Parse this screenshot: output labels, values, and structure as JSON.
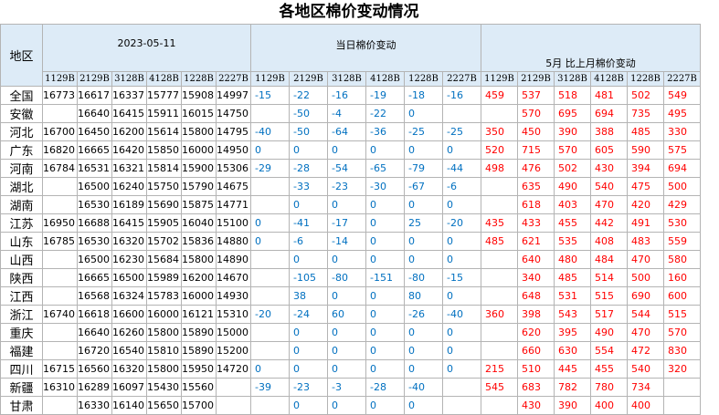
{
  "title": "各地区棉价变动情况",
  "table": {
    "header": {
      "region": "地区",
      "groups": [
        {
          "label": "2023-05-11",
          "codes": [
            "1129B",
            "2129B",
            "3128B",
            "4128B",
            "1228B",
            "2227B"
          ]
        },
        {
          "label": "当日棉价变动",
          "codes": [
            "1129B",
            "2129B",
            "3128B",
            "4128B",
            "1228B",
            "2227B"
          ]
        },
        {
          "label": "5月 比上月棉价变动",
          "codes": [
            "1129B",
            "2129B",
            "3128B",
            "4128B",
            "1228B",
            "2227B"
          ]
        }
      ]
    },
    "rows": [
      {
        "region": "全国",
        "prices": [
          16773,
          16617,
          16337,
          15777,
          15908,
          14997
        ],
        "daily": [
          -15,
          -22,
          -16,
          -19,
          -18,
          -16
        ],
        "monthly": [
          459,
          537,
          518,
          481,
          502,
          549
        ]
      },
      {
        "region": "安徽",
        "prices": [
          null,
          16640,
          16415,
          15911,
          16015,
          14750
        ],
        "daily": [
          null,
          -50,
          -4,
          -22,
          0,
          null
        ],
        "monthly": [
          null,
          570,
          695,
          694,
          735,
          495
        ]
      },
      {
        "region": "河北",
        "prices": [
          16700,
          16450,
          16200,
          15614,
          15800,
          14795
        ],
        "daily": [
          -40,
          -50,
          -64,
          -36,
          -25,
          -25
        ],
        "monthly": [
          350,
          450,
          390,
          388,
          485,
          330
        ]
      },
      {
        "region": "广东",
        "prices": [
          16820,
          16665,
          16420,
          15850,
          16000,
          14950
        ],
        "daily": [
          0,
          0,
          0,
          0,
          0,
          0
        ],
        "monthly": [
          520,
          715,
          570,
          605,
          590,
          575
        ]
      },
      {
        "region": "河南",
        "prices": [
          16784,
          16531,
          16321,
          15814,
          15900,
          15306
        ],
        "daily": [
          -29,
          -28,
          -54,
          -65,
          -79,
          -44
        ],
        "monthly": [
          498,
          476,
          502,
          430,
          394,
          694
        ]
      },
      {
        "region": "湖北",
        "prices": [
          null,
          16500,
          16240,
          15750,
          15790,
          14675
        ],
        "daily": [
          null,
          -33,
          -23,
          -30,
          -67,
          -6
        ],
        "monthly": [
          null,
          635,
          490,
          540,
          475,
          500
        ]
      },
      {
        "region": "湖南",
        "prices": [
          null,
          16530,
          16189,
          15690,
          15875,
          14771
        ],
        "daily": [
          null,
          0,
          0,
          0,
          0,
          0
        ],
        "monthly": [
          null,
          618,
          403,
          470,
          420,
          429
        ]
      },
      {
        "region": "江苏",
        "prices": [
          16950,
          16688,
          16415,
          15905,
          16040,
          15100
        ],
        "daily": [
          0,
          -41,
          -17,
          0,
          25,
          -20
        ],
        "monthly": [
          435,
          433,
          455,
          442,
          491,
          530
        ]
      },
      {
        "region": "山东",
        "prices": [
          16785,
          16530,
          16320,
          15702,
          15836,
          14880
        ],
        "daily": [
          0,
          -6,
          -14,
          0,
          0,
          0
        ],
        "monthly": [
          485,
          621,
          535,
          408,
          483,
          559
        ]
      },
      {
        "region": "山西",
        "prices": [
          null,
          16500,
          16230,
          15684,
          15800,
          14890
        ],
        "daily": [
          null,
          0,
          0,
          0,
          0,
          0
        ],
        "monthly": [
          null,
          640,
          480,
          484,
          470,
          580
        ]
      },
      {
        "region": "陕西",
        "prices": [
          null,
          16665,
          16500,
          15989,
          16200,
          14670
        ],
        "daily": [
          null,
          -105,
          -80,
          -151,
          -80,
          -15
        ],
        "monthly": [
          null,
          340,
          485,
          514,
          500,
          160
        ]
      },
      {
        "region": "江西",
        "prices": [
          null,
          16568,
          16324,
          15783,
          16000,
          14930
        ],
        "daily": [
          null,
          38,
          0,
          0,
          80,
          0
        ],
        "monthly": [
          null,
          648,
          531,
          515,
          690,
          600
        ]
      },
      {
        "region": "浙江",
        "prices": [
          16740,
          16618,
          16600,
          16000,
          16121,
          15310
        ],
        "daily": [
          -20,
          -24,
          60,
          0,
          -26,
          -40
        ],
        "monthly": [
          360,
          398,
          543,
          517,
          544,
          515
        ]
      },
      {
        "region": "重庆",
        "prices": [
          null,
          16640,
          16260,
          15800,
          15890,
          15000
        ],
        "daily": [
          null,
          0,
          0,
          0,
          0,
          0
        ],
        "monthly": [
          null,
          620,
          395,
          490,
          470,
          570
        ]
      },
      {
        "region": "福建",
        "prices": [
          null,
          16720,
          16540,
          15810,
          15890,
          15200
        ],
        "daily": [
          null,
          0,
          0,
          0,
          0,
          0
        ],
        "monthly": [
          null,
          660,
          630,
          554,
          472,
          830
        ]
      },
      {
        "region": "四川",
        "prices": [
          16715,
          16560,
          16320,
          15800,
          15950,
          14720
        ],
        "daily": [
          0,
          0,
          0,
          0,
          0,
          0
        ],
        "monthly": [
          215,
          510,
          445,
          455,
          540,
          320
        ]
      },
      {
        "region": "新疆",
        "prices": [
          16310,
          16289,
          16097,
          15430,
          15560,
          null
        ],
        "daily": [
          -39,
          -23,
          -3,
          -28,
          -40,
          null
        ],
        "monthly": [
          545,
          683,
          782,
          780,
          734,
          null
        ]
      },
      {
        "region": "甘肃",
        "prices": [
          null,
          16330,
          16140,
          15650,
          15700,
          null
        ],
        "daily": [
          null,
          0,
          0,
          0,
          0,
          null
        ],
        "monthly": [
          null,
          430,
          390,
          400,
          400,
          null
        ]
      }
    ]
  }
}
